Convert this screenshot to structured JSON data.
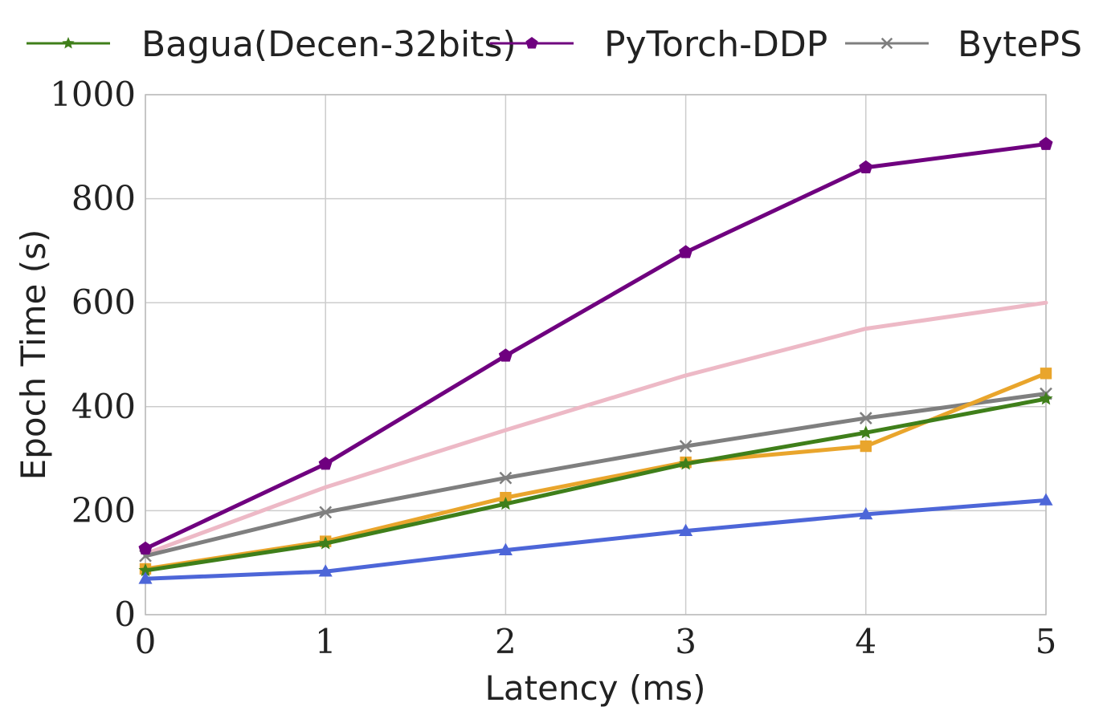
{
  "chart_data": {
    "type": "line",
    "title": "",
    "xlabel": "Latency (ms)",
    "ylabel": "Epoch Time (s)",
    "xlim": [
      0,
      5
    ],
    "ylim": [
      0,
      1000
    ],
    "xticks": [
      "0",
      "1",
      "2",
      "3",
      "4",
      "5"
    ],
    "yticks": [
      "0",
      "200",
      "400",
      "600",
      "800",
      "1000"
    ],
    "grid": true,
    "legend_position": "top",
    "x": [
      0,
      1,
      2,
      3,
      4,
      5
    ],
    "series": [
      {
        "name": "Bagua(Decen-32bits)",
        "color": "#3f7f1a",
        "marker": "star",
        "values": [
          85,
          137,
          213,
          290,
          350,
          415
        ]
      },
      {
        "name": "PyTorch-DDP",
        "color": "#6f007f",
        "marker": "pentagon",
        "values": [
          127,
          290,
          498,
          697,
          860,
          905
        ]
      },
      {
        "name": "BytePS",
        "color": "#7f7f7f",
        "marker": "x",
        "values": [
          113,
          197,
          263,
          324,
          378,
          425
        ]
      },
      {
        "color": "#edb9c6",
        "marker": "none",
        "values": [
          117,
          245,
          355,
          460,
          550,
          600
        ]
      },
      {
        "color": "#e9a52c",
        "marker": "square",
        "values": [
          88,
          141,
          225,
          293,
          324,
          464
        ]
      },
      {
        "color": "#4d66d8",
        "marker": "triangle",
        "values": [
          69,
          83,
          124,
          161,
          193,
          220
        ]
      }
    ]
  }
}
